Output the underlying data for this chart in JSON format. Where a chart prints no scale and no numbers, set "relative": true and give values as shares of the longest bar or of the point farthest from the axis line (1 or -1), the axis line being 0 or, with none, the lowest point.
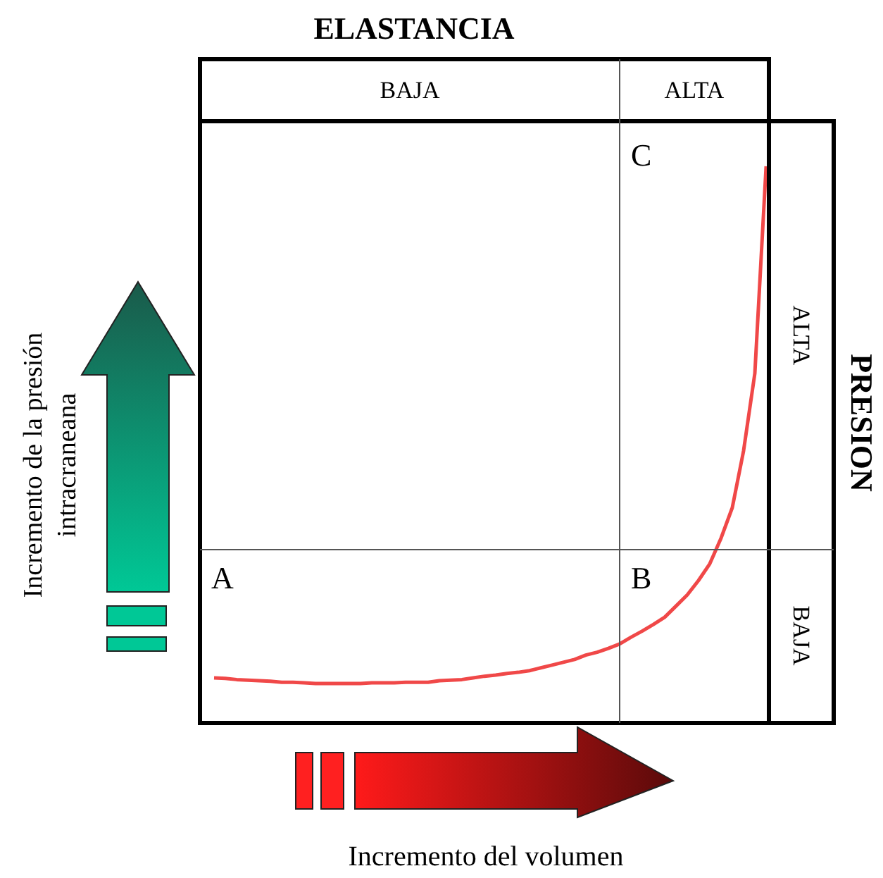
{
  "chart_data": {
    "type": "line",
    "relative": true,
    "title": "ELASTANCIA",
    "xlabel": "Incremento del volumen",
    "ylabel": "Incremento de la presión intracraneana",
    "y2label": "PRESION",
    "categories": [
      null,
      null,
      null,
      null,
      null,
      null,
      null,
      null,
      null,
      null,
      null,
      null,
      null,
      null,
      null,
      null,
      null,
      null,
      null,
      null,
      null,
      null,
      null,
      null,
      null,
      null,
      null,
      null,
      null,
      null,
      null,
      null,
      null,
      null,
      null,
      null,
      null,
      null,
      null,
      null,
      null,
      null,
      null,
      null,
      null,
      null,
      null,
      null,
      null,
      null
    ],
    "series": [
      {
        "color": "#f04848",
        "values": [
          0.081,
          0.08,
          0.078,
          0.077,
          0.076,
          0.075,
          0.073,
          0.073,
          0.072,
          0.071,
          0.071,
          0.071,
          0.071,
          0.071,
          0.072,
          0.072,
          0.072,
          0.073,
          0.073,
          0.073,
          0.076,
          0.077,
          0.078,
          0.081,
          0.084,
          0.086,
          0.089,
          0.091,
          0.094,
          0.099,
          0.104,
          0.109,
          0.114,
          0.122,
          0.127,
          0.134,
          0.142,
          0.154,
          0.165,
          0.177,
          0.19,
          0.21,
          0.23,
          0.256,
          0.286,
          0.332,
          0.387,
          0.489,
          0.628,
          1
        ]
      }
    ],
    "annotations": [
      "BAJA",
      "ALTA",
      "ALTA",
      "BAJA",
      "A",
      "B",
      "C"
    ]
  }
}
